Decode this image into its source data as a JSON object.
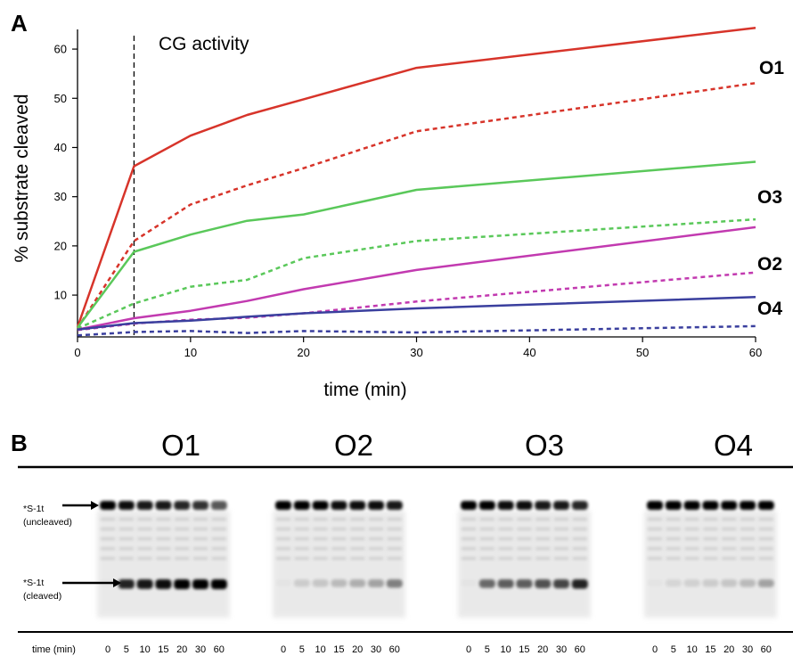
{
  "panel_a_label": "A",
  "panel_b_label": "B",
  "chart_data": {
    "type": "line",
    "title": "",
    "xlabel": "time (min)",
    "ylabel": "% substrate cleaved",
    "xlim": [
      0,
      60
    ],
    "ylim": [
      1.5,
      64
    ],
    "xticks": [
      0,
      10,
      20,
      30,
      40,
      50,
      60
    ],
    "yticks": [
      10,
      20,
      30,
      40,
      50,
      60
    ],
    "grid": false,
    "x": [
      0,
      5,
      10,
      15,
      20,
      30,
      60
    ],
    "annotations": [
      {
        "text": "CG activity",
        "x": 5,
        "style": "dashed vertical line"
      }
    ],
    "end_labels": [
      "O1",
      "O3",
      "O2",
      "O4"
    ],
    "series": [
      {
        "values": [
          3.5,
          36.2,
          42.4,
          46.6,
          49.8,
          56.2,
          64.3
        ],
        "color": "#d7342a",
        "dash": "solid"
      },
      {
        "values": [
          3.3,
          21.0,
          28.4,
          32.3,
          35.8,
          43.3,
          53.1
        ],
        "color": "#d7342a",
        "dash": "dashed"
      },
      {
        "values": [
          3.4,
          18.8,
          22.3,
          25.1,
          26.4,
          31.4,
          37.1
        ],
        "color": "#5ac85a",
        "dash": "solid"
      },
      {
        "values": [
          3.2,
          8.3,
          11.7,
          13.1,
          17.5,
          21.0,
          25.4
        ],
        "color": "#5ac85a",
        "dash": "dashed"
      },
      {
        "values": [
          3.0,
          5.3,
          6.8,
          8.8,
          11.2,
          15.1,
          23.8
        ],
        "color": "#c23ab0",
        "dash": "solid"
      },
      {
        "values": [
          2.9,
          4.2,
          5.0,
          5.4,
          6.3,
          8.7,
          14.6
        ],
        "color": "#c23ab0",
        "dash": "dashed"
      },
      {
        "values": [
          3.0,
          4.3,
          4.8,
          5.6,
          6.3,
          7.3,
          9.6
        ],
        "color": "#3a3f9e",
        "dash": "solid"
      },
      {
        "values": [
          1.8,
          2.5,
          2.7,
          2.3,
          2.7,
          2.4,
          3.7
        ],
        "color": "#3a3f9e",
        "dash": "dashed"
      }
    ]
  },
  "gel": {
    "lanes": [
      {
        "title": "O1",
        "cleaved": [
          0.02,
          0.85,
          0.9,
          0.95,
          1.0,
          1.0,
          1.0
        ],
        "uncleaved": [
          1.0,
          0.95,
          0.9,
          0.9,
          0.85,
          0.8,
          0.65
        ]
      },
      {
        "title": "O2",
        "cleaved": [
          0.02,
          0.12,
          0.15,
          0.2,
          0.25,
          0.3,
          0.45
        ],
        "uncleaved": [
          1.0,
          1.0,
          1.0,
          0.95,
          0.95,
          0.95,
          0.9
        ]
      },
      {
        "title": "O3",
        "cleaved": [
          0.02,
          0.55,
          0.6,
          0.6,
          0.65,
          0.7,
          0.85
        ],
        "uncleaved": [
          1.0,
          1.0,
          0.95,
          0.95,
          0.9,
          0.9,
          0.85
        ]
      },
      {
        "title": "O4",
        "cleaved": [
          0.02,
          0.08,
          0.1,
          0.12,
          0.15,
          0.2,
          0.3
        ],
        "uncleaved": [
          1.0,
          1.0,
          1.0,
          1.0,
          1.0,
          1.0,
          1.0
        ]
      }
    ],
    "uncleaved_label": [
      "*S-1t",
      "(uncleaved)"
    ],
    "cleaved_label": [
      "*S-1t",
      "(cleaved)"
    ],
    "time_axis_label": "time (min)",
    "lane_times": [
      "0",
      "5",
      "10",
      "15",
      "20",
      "30",
      "60"
    ]
  }
}
